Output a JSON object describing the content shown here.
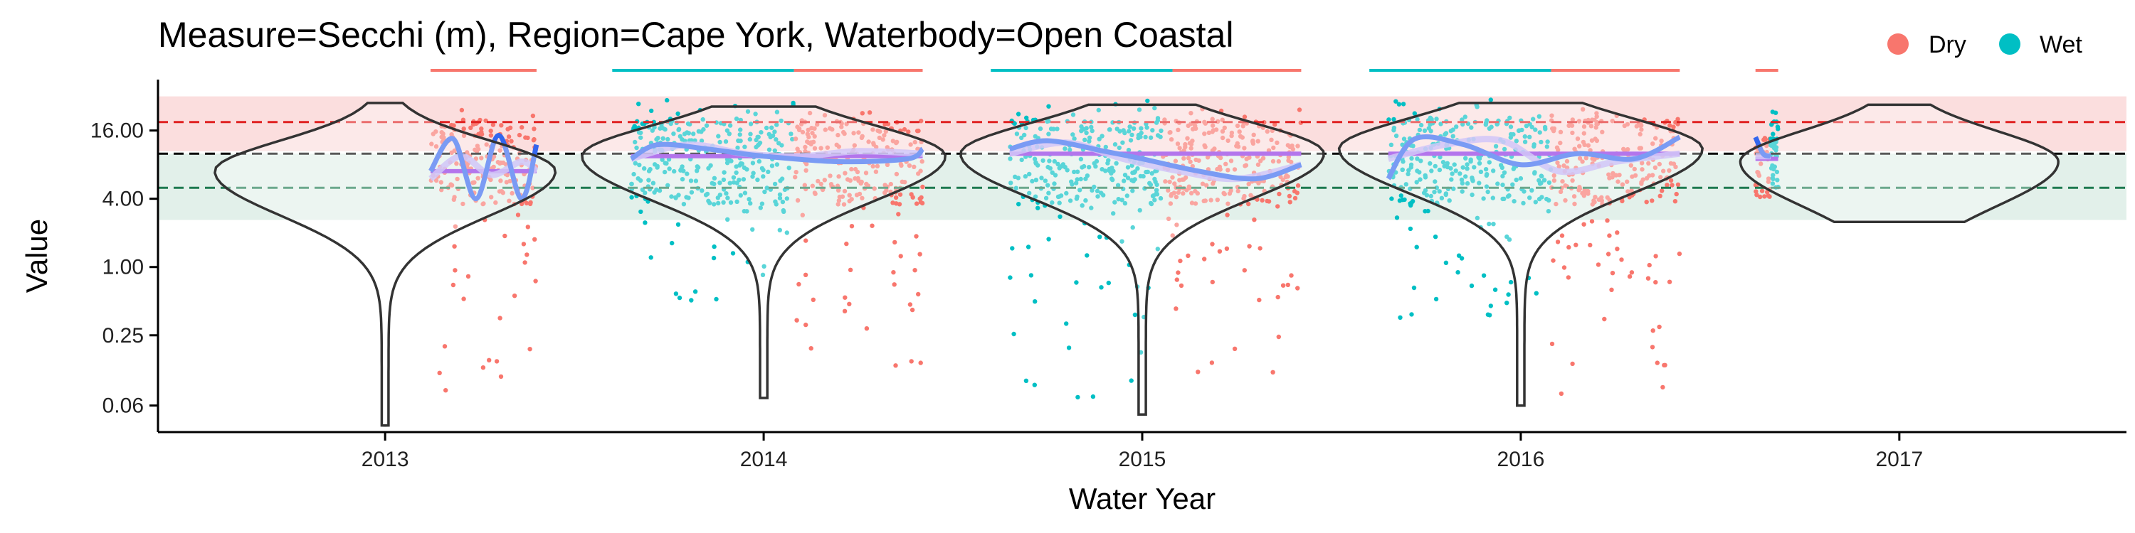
{
  "chart_data": {
    "type": "scatter",
    "title": "Measure=Secchi (m), Region=Cape York, Waterbody=Open Coastal",
    "xlabel": "Water Year",
    "ylabel": "Value",
    "y_scale": "log2",
    "y_ticks": [
      0.06,
      0.25,
      1.0,
      4.0,
      16.0
    ],
    "y_tick_labels": [
      "0.06",
      "0.25",
      "1.00",
      "4.00",
      "16.00"
    ],
    "ylim": [
      0.035,
      45
    ],
    "x_ticks": [
      2013,
      2014,
      2015,
      2016,
      2017
    ],
    "x_tick_labels": [
      "2013",
      "2014",
      "2015",
      "2016",
      "2017"
    ],
    "xlim": [
      2012.4,
      2017.6
    ],
    "legend": {
      "position": "top-right",
      "entries": [
        {
          "name": "Dry",
          "color": "#F8766D"
        },
        {
          "name": "Wet",
          "color": "#00BFC4"
        }
      ]
    },
    "reference_lines": [
      {
        "kind": "upper",
        "y": 19,
        "color": "#e02020",
        "band": [
          10.5,
          32
        ],
        "band_color": "#f8c8c8"
      },
      {
        "kind": "guideline",
        "y": 10,
        "color": "#000000"
      },
      {
        "kind": "lower",
        "y": 5,
        "color": "#1e7a50",
        "band": [
          2.6,
          10
        ],
        "band_color": "#cfe6dc"
      }
    ],
    "seasons": [
      {
        "season": "Dry",
        "x": [
          2013.12,
          2013.4
        ],
        "y_range": [
          0.06,
          25
        ]
      },
      {
        "season": "Wet",
        "x": [
          2013.65,
          2014.08
        ],
        "y_range": [
          0.3,
          30
        ]
      },
      {
        "season": "Dry",
        "x": [
          2014.08,
          2014.42
        ],
        "y_range": [
          0.12,
          25
        ]
      },
      {
        "season": "Wet",
        "x": [
          2014.65,
          2015.05
        ],
        "y_range": [
          0.04,
          30
        ]
      },
      {
        "season": "Dry",
        "x": [
          2015.05,
          2015.42
        ],
        "y_range": [
          0.1,
          25
        ]
      },
      {
        "season": "Wet",
        "x": [
          2015.65,
          2016.08
        ],
        "y_range": [
          0.3,
          30
        ]
      },
      {
        "season": "Dry",
        "x": [
          2016.08,
          2016.42
        ],
        "y_range": [
          0.06,
          25
        ]
      },
      {
        "season": "Dry",
        "x": [
          2016.62,
          2016.66
        ],
        "y_range": [
          4,
          14
        ]
      },
      {
        "season": "Wet",
        "x": [
          2016.66,
          2016.68
        ],
        "y_range": [
          5,
          25
        ]
      }
    ],
    "trend": {
      "color": "#3366ee",
      "segments": [
        {
          "x": [
            2013.12,
            2013.18,
            2013.24,
            2013.3,
            2013.36,
            2013.4
          ],
          "y": [
            7.0,
            13.5,
            4.0,
            14.5,
            4.0,
            12.0
          ]
        },
        {
          "x": [
            2013.65,
            2013.72,
            2013.85,
            2014.0,
            2014.2,
            2014.38,
            2014.42
          ],
          "y": [
            9.0,
            12.0,
            11.0,
            9.5,
            8.5,
            9.0,
            11.0
          ]
        },
        {
          "x": [
            2014.65,
            2014.75,
            2014.9,
            2015.0,
            2015.15,
            2015.3,
            2015.42
          ],
          "y": [
            11.0,
            13.0,
            10.5,
            9.0,
            7.0,
            6.0,
            8.0
          ]
        },
        {
          "x": [
            2015.65,
            2015.72,
            2015.85,
            2016.0,
            2016.15,
            2016.3,
            2016.42
          ],
          "y": [
            6.0,
            13.5,
            12.0,
            8.0,
            10.0,
            9.0,
            14.0
          ]
        },
        {
          "x": [
            2016.62,
            2016.64,
            2016.66
          ],
          "y": [
            14.0,
            10.0,
            9.5
          ]
        }
      ]
    },
    "smooth": {
      "color": "#b8a8f4",
      "segments": [
        {
          "x": [
            2013.12,
            2013.2,
            2013.28,
            2013.36,
            2013.4
          ],
          "y": [
            6.0,
            9.5,
            6.5,
            8.5,
            7.0
          ]
        },
        {
          "x": [
            2013.65,
            2013.8,
            2013.95,
            2014.1,
            2014.25,
            2014.42
          ],
          "y": [
            9.0,
            12.0,
            10.0,
            9.5,
            10.5,
            10.0
          ]
        },
        {
          "x": [
            2014.65,
            2014.8,
            2014.95,
            2015.1,
            2015.25,
            2015.42
          ],
          "y": [
            10.0,
            12.5,
            9.0,
            7.0,
            6.0,
            8.0
          ]
        },
        {
          "x": [
            2015.65,
            2015.8,
            2015.95,
            2016.1,
            2016.25,
            2016.42
          ],
          "y": [
            9.0,
            12.0,
            13.0,
            7.0,
            8.5,
            10.0
          ]
        },
        {
          "x": [
            2016.62,
            2016.66
          ],
          "y": [
            9.5,
            9.5
          ]
        }
      ]
    },
    "medians": {
      "color": "#8a2be2",
      "segments": [
        {
          "x": [
            2013.12,
            2013.4
          ],
          "y": 7.0
        },
        {
          "x": [
            2013.65,
            2014.42
          ],
          "y": 9.5
        },
        {
          "x": [
            2014.65,
            2015.42
          ],
          "y": 10.0
        },
        {
          "x": [
            2015.65,
            2016.42
          ],
          "y": 10.0
        },
        {
          "x": [
            2016.62,
            2016.68
          ],
          "y": 9.0
        }
      ]
    },
    "violins": [
      {
        "x": 2013,
        "y_range": [
          0.04,
          28
        ],
        "mode": 7.0,
        "max_halfwidth": 0.45
      },
      {
        "x": 2014,
        "y_range": [
          0.07,
          26
        ],
        "mode": 9.5,
        "max_halfwidth": 0.48
      },
      {
        "x": 2015,
        "y_range": [
          0.05,
          27
        ],
        "mode": 10.0,
        "max_halfwidth": 0.48
      },
      {
        "x": 2016,
        "y_range": [
          0.06,
          28
        ],
        "mode": 11.0,
        "max_halfwidth": 0.48
      },
      {
        "x": 2017,
        "y_range": [
          2.5,
          27
        ],
        "mode": 8.5,
        "max_halfwidth": 0.42
      }
    ],
    "season_bars": [
      {
        "season": "Dry",
        "x": [
          2013.12,
          2013.4
        ]
      },
      {
        "season": "Wet",
        "x": [
          2013.6,
          2014.08
        ]
      },
      {
        "season": "Dry",
        "x": [
          2014.08,
          2014.42
        ]
      },
      {
        "season": "Wet",
        "x": [
          2014.6,
          2015.08
        ]
      },
      {
        "season": "Dry",
        "x": [
          2015.08,
          2015.42
        ]
      },
      {
        "season": "Wet",
        "x": [
          2015.6,
          2016.08
        ]
      },
      {
        "season": "Dry",
        "x": [
          2016.08,
          2016.42
        ]
      },
      {
        "season": "Dry",
        "x": [
          2016.62,
          2016.68
        ]
      }
    ]
  }
}
